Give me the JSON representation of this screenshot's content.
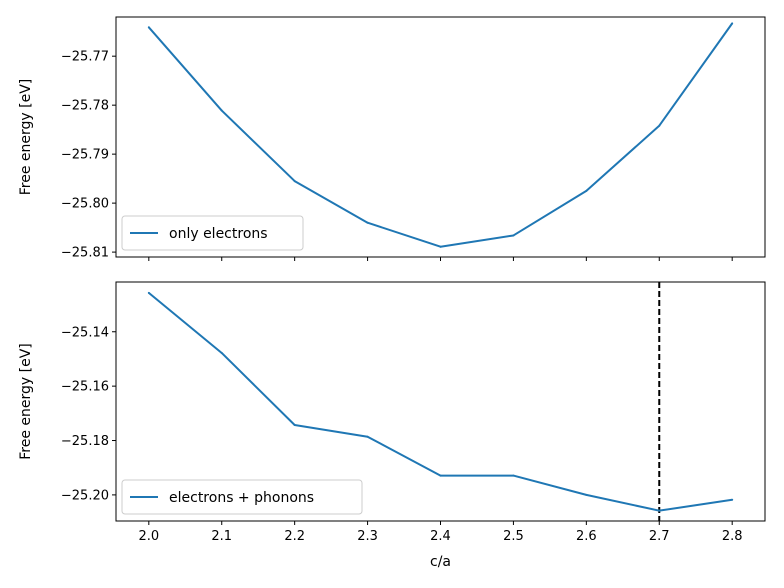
{
  "chart_data": [
    {
      "type": "line",
      "title": "",
      "xlabel": "",
      "ylabel": "Free energy [eV]",
      "xlim": [
        1.955,
        2.845
      ],
      "ylim": [
        -25.811,
        -25.762
      ],
      "x": [
        2.0,
        2.1,
        2.2,
        2.3,
        2.4,
        2.5,
        2.6,
        2.7,
        2.8
      ],
      "xticks": [
        "2.0",
        "2.1",
        "2.2",
        "2.3",
        "2.4",
        "2.5",
        "2.6",
        "2.7",
        "2.8"
      ],
      "yticks": [
        -25.77,
        -25.78,
        -25.79,
        -25.8,
        -25.81
      ],
      "ytick_labels": [
        "−25.77",
        "−25.78",
        "−25.79",
        "−25.80",
        "−25.81"
      ],
      "series": [
        {
          "name": "only electrons",
          "color": "#1f77b4",
          "values": [
            -25.7641,
            -25.7811,
            -25.7955,
            -25.804,
            -25.8089,
            -25.8066,
            -25.7975,
            -25.7842,
            -25.7633
          ]
        }
      ],
      "legend": "lower-left",
      "grid": false
    },
    {
      "type": "line",
      "title": "",
      "xlabel": "c/a",
      "ylabel": "Free energy [eV]",
      "xlim": [
        1.955,
        2.845
      ],
      "ylim": [
        -25.2096,
        -25.1217
      ],
      "x": [
        2.0,
        2.1,
        2.2,
        2.3,
        2.4,
        2.5,
        2.6,
        2.7,
        2.8
      ],
      "xticks": [
        "2.0",
        "2.1",
        "2.2",
        "2.3",
        "2.4",
        "2.5",
        "2.6",
        "2.7",
        "2.8"
      ],
      "yticks": [
        -25.14,
        -25.16,
        -25.18,
        -25.2
      ],
      "ytick_labels": [
        "−25.14",
        "−25.16",
        "−25.18",
        "−25.20"
      ],
      "series": [
        {
          "name": "electrons + phonons",
          "color": "#1f77b4",
          "values": [
            -25.1257,
            -25.1478,
            -25.1743,
            -25.1786,
            -25.1929,
            -25.1929,
            -25.2,
            -25.2058,
            -25.2018
          ]
        }
      ],
      "vline": {
        "x": 2.7,
        "color": "#000000",
        "style": "dashed"
      },
      "legend": "lower-left",
      "grid": false
    }
  ]
}
